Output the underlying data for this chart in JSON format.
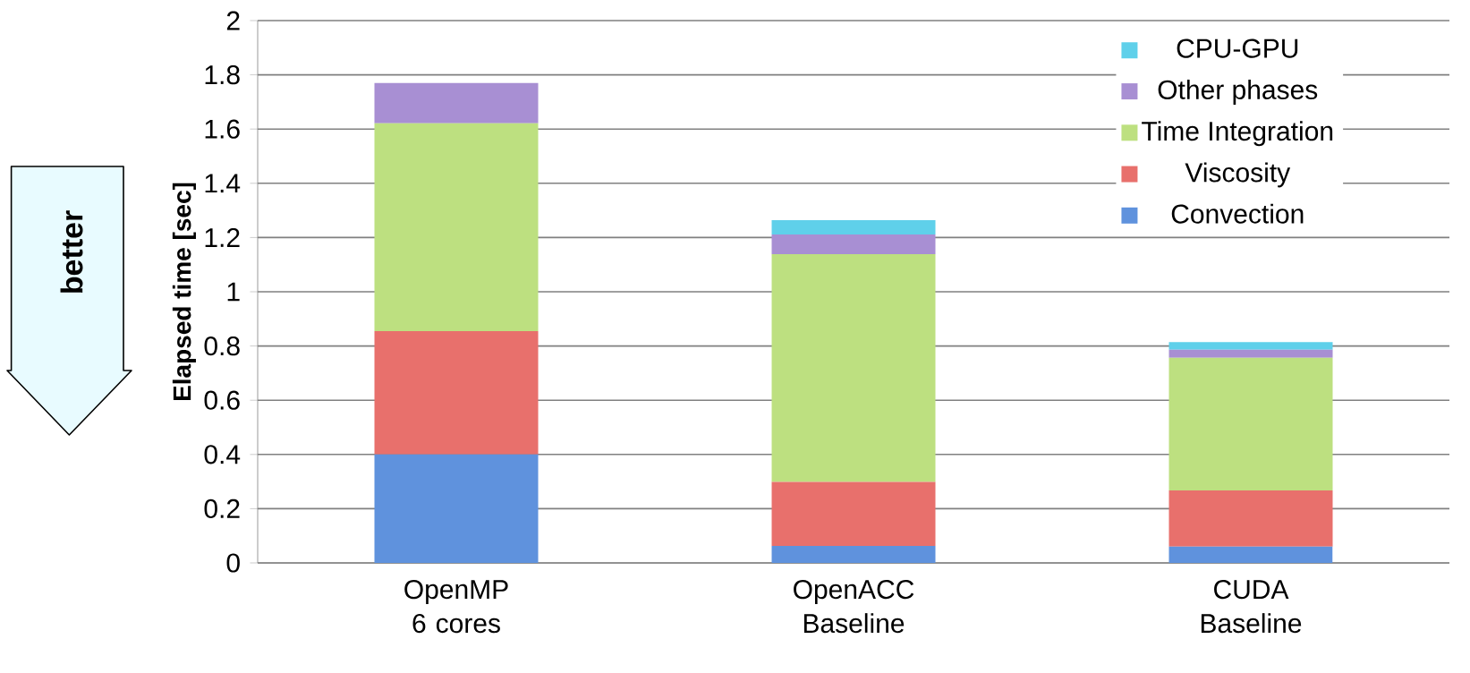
{
  "chart_data": {
    "type": "bar",
    "stacked": true,
    "ylabel": "Elapsed time [sec]",
    "categories": [
      "OpenMP 6 cores",
      "OpenACC Baseline",
      "CUDA Baseline"
    ],
    "series": [
      {
        "name": "Convection",
        "color": "#5f92dd",
        "values": [
          0.4,
          0.063,
          0.06
        ]
      },
      {
        "name": "Viscosity",
        "color": "#e8706c",
        "values": [
          0.455,
          0.236,
          0.207
        ]
      },
      {
        "name": "Time Integration",
        "color": "#bde080",
        "values": [
          0.766,
          0.84,
          0.49
        ]
      },
      {
        "name": "Other phases",
        "color": "#a88fd3",
        "values": [
          0.149,
          0.072,
          0.029
        ]
      },
      {
        "name": "CPU-GPU",
        "color": "#5fd0ea",
        "values": [
          0,
          0.053,
          0.028
        ]
      }
    ],
    "ylim": [
      0,
      2
    ],
    "yticks": [
      0,
      0.2,
      0.4,
      0.6,
      0.8,
      1,
      1.2,
      1.4,
      1.6,
      1.8,
      2
    ],
    "grid": "y",
    "legend": "top right",
    "annotations": [
      "better"
    ]
  }
}
